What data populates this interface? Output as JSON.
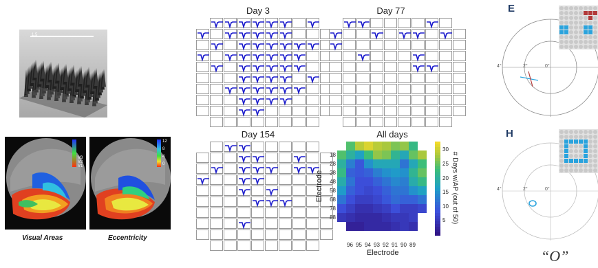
{
  "microarray": {
    "scale_label": "1.5"
  },
  "brain_panels": [
    {
      "caption": "Visual Areas",
      "legend": [
        "V3",
        "V2",
        "V1"
      ]
    },
    {
      "caption": "Eccentricity",
      "legend": [
        "12",
        "8",
        "4",
        "0"
      ]
    }
  ],
  "grids": [
    {
      "title": "Day 3",
      "active": [
        [
          0,
          1
        ],
        [
          0,
          2
        ],
        [
          0,
          3
        ],
        [
          0,
          4
        ],
        [
          0,
          5
        ],
        [
          0,
          6
        ],
        [
          0,
          8
        ],
        [
          1,
          0
        ],
        [
          1,
          2
        ],
        [
          1,
          3
        ],
        [
          1,
          4
        ],
        [
          1,
          5
        ],
        [
          1,
          6
        ],
        [
          2,
          1
        ],
        [
          2,
          3
        ],
        [
          2,
          4
        ],
        [
          2,
          5
        ],
        [
          2,
          6
        ],
        [
          2,
          7
        ],
        [
          2,
          8
        ],
        [
          3,
          0
        ],
        [
          3,
          2
        ],
        [
          3,
          3
        ],
        [
          3,
          4
        ],
        [
          3,
          5
        ],
        [
          3,
          6
        ],
        [
          3,
          7
        ],
        [
          4,
          1
        ],
        [
          4,
          3
        ],
        [
          4,
          4
        ],
        [
          4,
          5
        ],
        [
          4,
          6
        ],
        [
          4,
          7
        ],
        [
          5,
          3
        ],
        [
          5,
          4
        ],
        [
          5,
          5
        ],
        [
          5,
          6
        ],
        [
          5,
          8
        ],
        [
          6,
          2
        ],
        [
          6,
          3
        ],
        [
          6,
          4
        ],
        [
          6,
          5
        ],
        [
          6,
          6
        ],
        [
          6,
          7
        ],
        [
          7,
          3
        ],
        [
          7,
          4
        ],
        [
          7,
          5
        ],
        [
          7,
          6
        ],
        [
          8,
          3
        ],
        [
          8,
          4
        ]
      ]
    },
    {
      "title": "Day 77",
      "active": [
        [
          0,
          1
        ],
        [
          0,
          2
        ],
        [
          0,
          7
        ],
        [
          1,
          0
        ],
        [
          1,
          3
        ],
        [
          1,
          5
        ],
        [
          1,
          6
        ],
        [
          1,
          8
        ],
        [
          2,
          0
        ],
        [
          3,
          2
        ],
        [
          3,
          6
        ],
        [
          4,
          6
        ],
        [
          4,
          7
        ]
      ]
    },
    {
      "title": "Day 154",
      "active": [
        [
          0,
          2
        ],
        [
          0,
          3
        ],
        [
          1,
          3
        ],
        [
          1,
          4
        ],
        [
          1,
          7
        ],
        [
          2,
          1
        ],
        [
          2,
          3
        ],
        [
          2,
          4
        ],
        [
          2,
          5
        ],
        [
          2,
          7
        ],
        [
          2,
          8
        ],
        [
          3,
          0
        ],
        [
          3,
          3
        ],
        [
          3,
          4
        ],
        [
          4,
          3
        ],
        [
          4,
          5
        ],
        [
          5,
          4
        ],
        [
          5,
          5
        ],
        [
          5,
          6
        ],
        [
          7,
          3
        ]
      ]
    }
  ],
  "chart_data": {
    "type": "heatmap",
    "title": "All days",
    "xlabel": "Electrode",
    "ylabel": "Electrode",
    "colorbar_label": "# Days w/AP (out of 50)",
    "x_ticks": [
      "96",
      "95",
      "94",
      "93",
      "92",
      "91",
      "90",
      "89"
    ],
    "y_ticks": [
      "18",
      "28",
      "38",
      "48",
      "58",
      "68",
      "78",
      "88"
    ],
    "colorbar_ticks": [
      5,
      10,
      15,
      20,
      25,
      30
    ],
    "colorbar_range": [
      0,
      33
    ],
    "values": [
      [
        null,
        24,
        29,
        31,
        29,
        28,
        26,
        27,
        22,
        null
      ],
      [
        24,
        20,
        17,
        23,
        27,
        26,
        21,
        18,
        25,
        28
      ],
      [
        20,
        13,
        9,
        15,
        18,
        18,
        18,
        12,
        18,
        23
      ],
      [
        22,
        10,
        9,
        10,
        13,
        15,
        16,
        15,
        21,
        25
      ],
      [
        19,
        12,
        8,
        8,
        10,
        12,
        14,
        13,
        19,
        22
      ],
      [
        16,
        10,
        8,
        7,
        8,
        10,
        12,
        12,
        15,
        17
      ],
      [
        12,
        8,
        6,
        6,
        7,
        9,
        11,
        10,
        10,
        12
      ],
      [
        8,
        6,
        4,
        4,
        5,
        6,
        8,
        6,
        6,
        7
      ],
      [
        5,
        4,
        3,
        3,
        3,
        4,
        5,
        5,
        6,
        null
      ],
      [
        null,
        2,
        2,
        3,
        3,
        3,
        4,
        5,
        4,
        null
      ]
    ]
  },
  "percept_panels": [
    {
      "letter": "E",
      "deg_labels": [
        "4°",
        "2°",
        "0°"
      ]
    },
    {
      "letter": "H",
      "deg_labels": [
        "4°",
        "2°",
        "0°"
      ],
      "percept_label": "“O”"
    }
  ],
  "colors": {
    "trace": "#1a1acc",
    "stim_blue": "#29a3dd",
    "stim_red": "#b23a3a",
    "cell_border": "#9a9a9a"
  }
}
